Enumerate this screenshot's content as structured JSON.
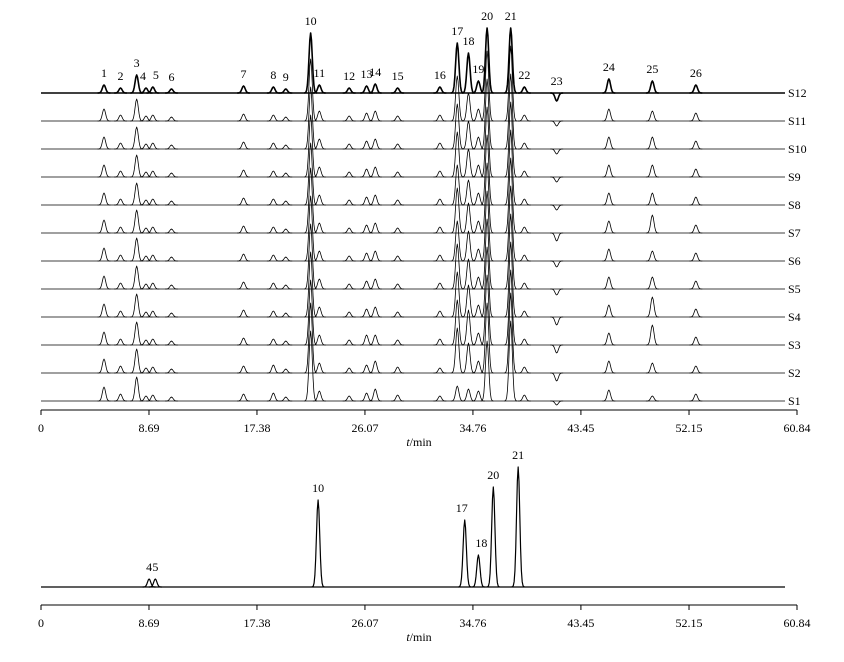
{
  "chart_data": [
    {
      "type": "line",
      "xlim": [
        0,
        60.84
      ],
      "xticks": [
        0,
        8.69,
        17.38,
        26.07,
        34.76,
        43.45,
        52.15,
        60.84
      ],
      "xlabel": [
        "t",
        "/min"
      ],
      "peaks": [
        {
          "label": "1",
          "x": 5.07
        },
        {
          "label": "2",
          "x": 6.4
        },
        {
          "label": "3",
          "x": 7.7
        },
        {
          "label": "4",
          "x": 8.45
        },
        {
          "label": "5",
          "x": 9.0
        },
        {
          "label": "6",
          "x": 10.5
        },
        {
          "label": "7",
          "x": 16.3
        },
        {
          "label": "8",
          "x": 18.7
        },
        {
          "label": "9",
          "x": 19.7
        },
        {
          "label": "10",
          "x": 21.7
        },
        {
          "label": "11",
          "x": 22.4
        },
        {
          "label": "12",
          "x": 24.8
        },
        {
          "label": "13",
          "x": 26.2
        },
        {
          "label": "14",
          "x": 26.9
        },
        {
          "label": "15",
          "x": 28.7
        },
        {
          "label": "16",
          "x": 32.1
        },
        {
          "label": "17",
          "x": 33.5
        },
        {
          "label": "18",
          "x": 34.4
        },
        {
          "label": "19",
          "x": 35.2
        },
        {
          "label": "20",
          "x": 35.9
        },
        {
          "label": "21",
          "x": 37.8
        },
        {
          "label": "22",
          "x": 38.9
        },
        {
          "label": "23",
          "x": 41.5
        },
        {
          "label": "24",
          "x": 45.7
        },
        {
          "label": "25",
          "x": 49.2
        },
        {
          "label": "26",
          "x": 52.7
        }
      ],
      "series": [
        {
          "name": "S1",
          "color": "#000000",
          "values": [
            14,
            7,
            24,
            5,
            6,
            4,
            7,
            8,
            4,
            70,
            10,
            5,
            8,
            12,
            6,
            5,
            15,
            12,
            10,
            60,
            80,
            6,
            -4,
            11,
            5,
            7
          ]
        },
        {
          "name": "S2",
          "color": "#000000",
          "values": [
            14,
            7,
            24,
            5,
            6,
            4,
            7,
            8,
            4,
            70,
            10,
            5,
            8,
            12,
            6,
            5,
            45,
            30,
            12,
            70,
            80,
            6,
            -8,
            12,
            10,
            7
          ]
        },
        {
          "name": "S3",
          "color": "#000000",
          "values": [
            13,
            6,
            23,
            5,
            6,
            4,
            7,
            6,
            4,
            65,
            10,
            5,
            10,
            10,
            5,
            6,
            45,
            35,
            12,
            70,
            75,
            6,
            -8,
            12,
            20,
            8
          ]
        },
        {
          "name": "S4",
          "color": "#000000",
          "values": [
            13,
            6,
            23,
            5,
            6,
            4,
            7,
            6,
            4,
            65,
            10,
            5,
            8,
            10,
            5,
            6,
            45,
            32,
            12,
            70,
            75,
            6,
            -8,
            12,
            20,
            8
          ]
        },
        {
          "name": "S5",
          "color": "#000000",
          "values": [
            13,
            6,
            23,
            5,
            6,
            4,
            7,
            6,
            4,
            65,
            10,
            5,
            8,
            10,
            5,
            6,
            45,
            30,
            12,
            70,
            75,
            6,
            -6,
            12,
            12,
            8
          ]
        },
        {
          "name": "S6",
          "color": "#000000",
          "values": [
            13,
            6,
            23,
            5,
            6,
            4,
            7,
            6,
            4,
            65,
            10,
            5,
            8,
            10,
            5,
            6,
            40,
            30,
            12,
            70,
            75,
            6,
            -6,
            12,
            10,
            8
          ]
        },
        {
          "name": "S7",
          "color": "#000000",
          "values": [
            13,
            6,
            23,
            5,
            6,
            4,
            7,
            6,
            4,
            65,
            10,
            5,
            8,
            10,
            5,
            6,
            45,
            30,
            12,
            70,
            75,
            6,
            -8,
            12,
            18,
            8
          ]
        },
        {
          "name": "S8",
          "color": "#000000",
          "values": [
            12,
            6,
            22,
            5,
            6,
            4,
            7,
            6,
            4,
            62,
            10,
            5,
            8,
            10,
            5,
            6,
            40,
            25,
            12,
            70,
            75,
            6,
            -5,
            12,
            12,
            8
          ]
        },
        {
          "name": "S9",
          "color": "#000000",
          "values": [
            12,
            6,
            22,
            5,
            6,
            4,
            7,
            6,
            4,
            62,
            10,
            5,
            8,
            10,
            5,
            6,
            45,
            28,
            12,
            70,
            75,
            6,
            -5,
            12,
            12,
            8
          ]
        },
        {
          "name": "S10",
          "color": "#000000",
          "values": [
            12,
            6,
            22,
            5,
            6,
            4,
            7,
            6,
            4,
            62,
            10,
            5,
            8,
            10,
            5,
            6,
            45,
            28,
            12,
            70,
            75,
            6,
            -5,
            12,
            12,
            8
          ]
        },
        {
          "name": "S11",
          "color": "#000000",
          "values": [
            12,
            6,
            22,
            5,
            6,
            4,
            7,
            6,
            4,
            62,
            10,
            5,
            8,
            10,
            5,
            6,
            45,
            28,
            12,
            70,
            75,
            6,
            -5,
            12,
            10,
            8
          ]
        },
        {
          "name": "S12",
          "color": "#000000",
          "values": [
            8,
            5,
            18,
            5,
            6,
            4,
            7,
            6,
            4,
            60,
            8,
            5,
            7,
            9,
            5,
            6,
            50,
            40,
            12,
            65,
            65,
            6,
            -8,
            14,
            12,
            8
          ]
        }
      ]
    },
    {
      "type": "line",
      "xlim": [
        0,
        60.84
      ],
      "xticks": [
        0,
        8.69,
        17.38,
        26.07,
        34.76,
        43.45,
        52.15,
        60.84
      ],
      "xlabel": [
        "t",
        "/min"
      ],
      "peaks": [
        {
          "label": "4",
          "x": 8.7
        },
        {
          "label": "5",
          "x": 9.2
        },
        {
          "label": "10",
          "x": 22.3
        },
        {
          "label": "17",
          "x": 34.1
        },
        {
          "label": "18",
          "x": 35.2
        },
        {
          "label": "20",
          "x": 36.4
        },
        {
          "label": "21",
          "x": 38.4
        }
      ],
      "values": [
        8,
        8,
        87,
        67,
        32,
        100,
        120
      ],
      "color": "#000000"
    }
  ]
}
